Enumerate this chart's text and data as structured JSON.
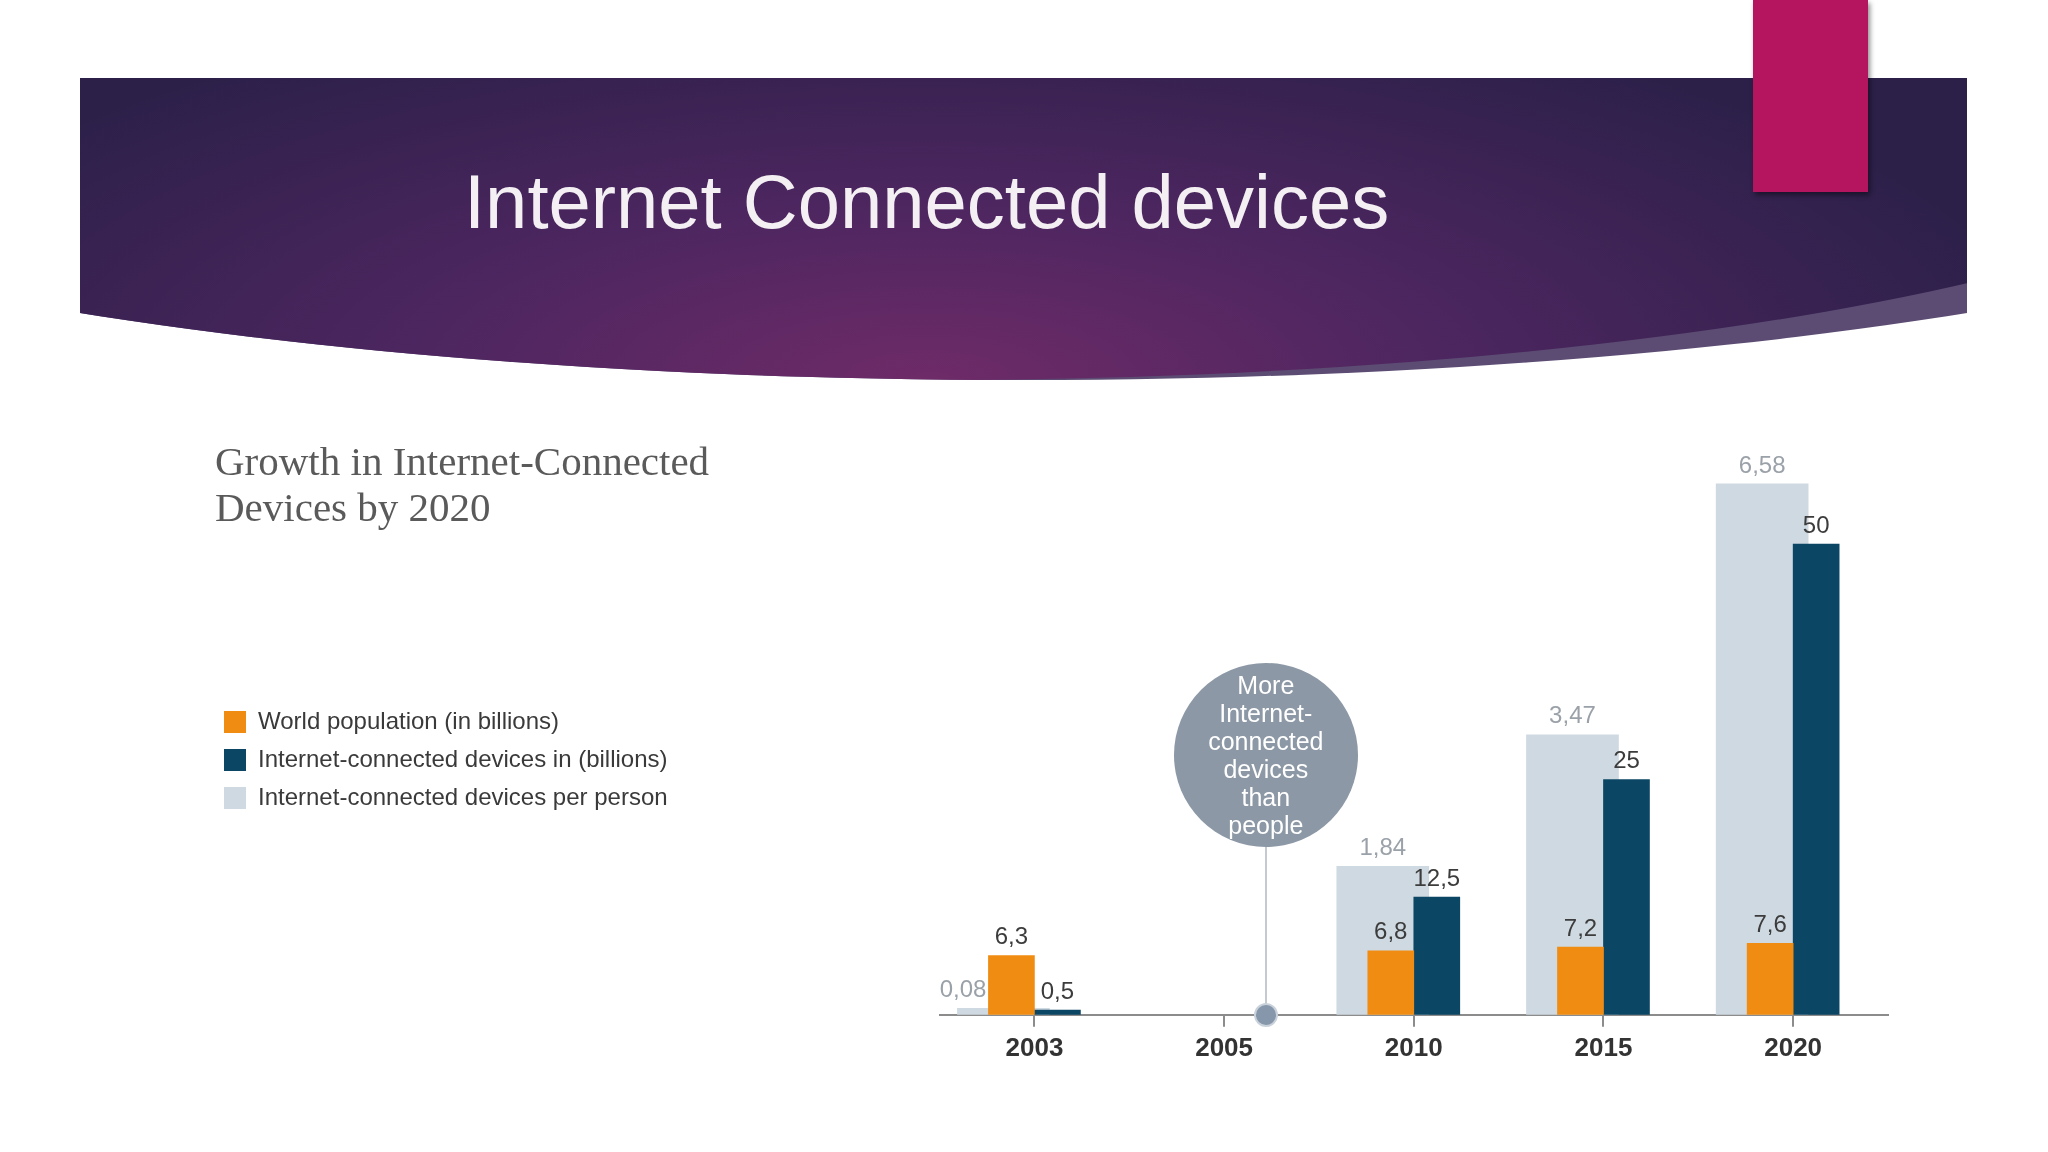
{
  "chart_data": {
    "type": "bar",
    "title": "Internet Connected devices",
    "subtitle": "Growth in Internet-Connected Devices by 2020",
    "categories": [
      "2003",
      "2005",
      "2010",
      "2015",
      "2020"
    ],
    "series": [
      {
        "name": "World population (in billions)",
        "color": "#f08c12",
        "values": [
          6.3,
          null,
          6.8,
          7.2,
          7.6
        ],
        "value_labels": [
          "6,3",
          null,
          "6,8",
          "7,2",
          "7,6"
        ]
      },
      {
        "name": "Internet-connected devices in (billions)",
        "color": "#0b4664",
        "values": [
          0.5,
          null,
          12.5,
          25,
          50
        ],
        "value_labels": [
          "0,5",
          null,
          "12,5",
          "25",
          "50"
        ]
      },
      {
        "name": "Internet-connected devices per person",
        "color": "#cfd9e1",
        "axis": "y2",
        "values": [
          0.08,
          null,
          1.84,
          3.47,
          6.58
        ],
        "value_labels": [
          "0,08",
          null,
          "1,84",
          "3,47",
          "6,58"
        ]
      }
    ],
    "tick_labels": "x",
    "grid": false,
    "legend": "left",
    "annotations": [
      "More Internet-connected devices than people"
    ]
  }
}
